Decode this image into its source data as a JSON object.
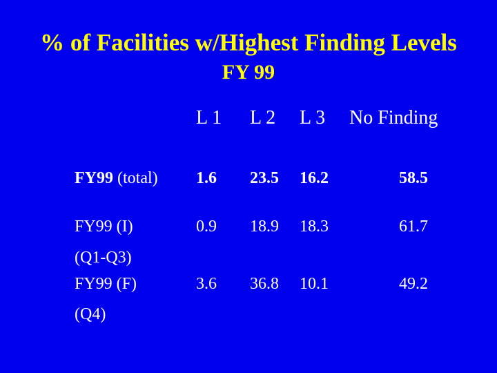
{
  "slide": {
    "title": "% of Facilities w/Highest Finding Levels",
    "subtitle": "FY 99"
  },
  "table": {
    "headers": [
      "L 1",
      "L 2",
      "L 3",
      "No Finding"
    ],
    "rows": [
      {
        "label_bold": "FY99",
        "label_rest": " (total)",
        "values": [
          "1.6",
          "23.5",
          "16.2",
          "58.5"
        ]
      },
      {
        "label_line1": "FY99 (I)",
        "label_line2": "(Q1-Q3)",
        "values": [
          "0.9",
          "18.9",
          "18.3",
          "61.7"
        ]
      },
      {
        "label_line1": "FY99 (F)",
        "label_line2": "(Q4)",
        "values": [
          "3.6",
          "36.8",
          "10.1",
          "49.2"
        ]
      }
    ]
  },
  "colors": {
    "background": "#0000ee",
    "title": "#ffff00",
    "text": "#ffffff"
  }
}
